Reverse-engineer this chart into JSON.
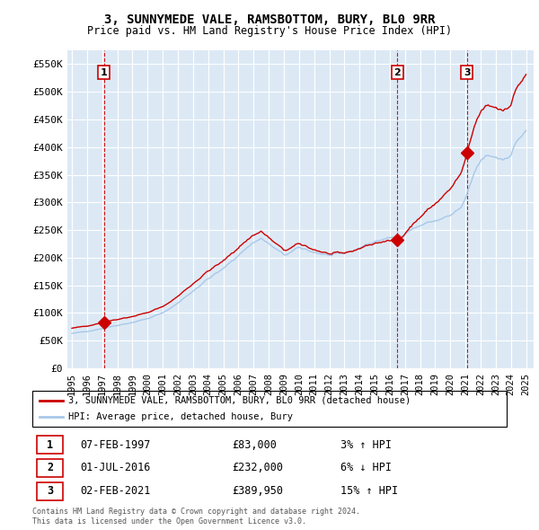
{
  "title": "3, SUNNYMEDE VALE, RAMSBOTTOM, BURY, BL0 9RR",
  "subtitle": "Price paid vs. HM Land Registry's House Price Index (HPI)",
  "ylim": [
    0,
    575000
  ],
  "ytick_labels": [
    "£0",
    "£50K",
    "£100K",
    "£150K",
    "£200K",
    "£250K",
    "£300K",
    "£350K",
    "£400K",
    "£450K",
    "£500K",
    "£550K"
  ],
  "plot_bg_color": "#dce9f5",
  "grid_color": "white",
  "sale_color": "#cc0000",
  "hpi_color": "#a8c8e8",
  "vline_color": "#cc0000",
  "transactions": [
    {
      "date": 1997.12,
      "price": 83000,
      "label": "1"
    },
    {
      "date": 2016.5,
      "price": 232000,
      "label": "2"
    },
    {
      "date": 2021.09,
      "price": 389950,
      "label": "3"
    }
  ],
  "transaction_table": [
    {
      "num": "1",
      "date": "07-FEB-1997",
      "price": "£83,000",
      "hpi": "3% ↑ HPI"
    },
    {
      "num": "2",
      "date": "01-JUL-2016",
      "price": "£232,000",
      "hpi": "6% ↓ HPI"
    },
    {
      "num": "3",
      "date": "02-FEB-2021",
      "price": "£389,950",
      "hpi": "15% ↑ HPI"
    }
  ],
  "legend_label_sale": "3, SUNNYMEDE VALE, RAMSBOTTOM, BURY, BL0 9RR (detached house)",
  "legend_label_hpi": "HPI: Average price, detached house, Bury",
  "footnote": "Contains HM Land Registry data © Crown copyright and database right 2024.\nThis data is licensed under the Open Government Licence v3.0."
}
